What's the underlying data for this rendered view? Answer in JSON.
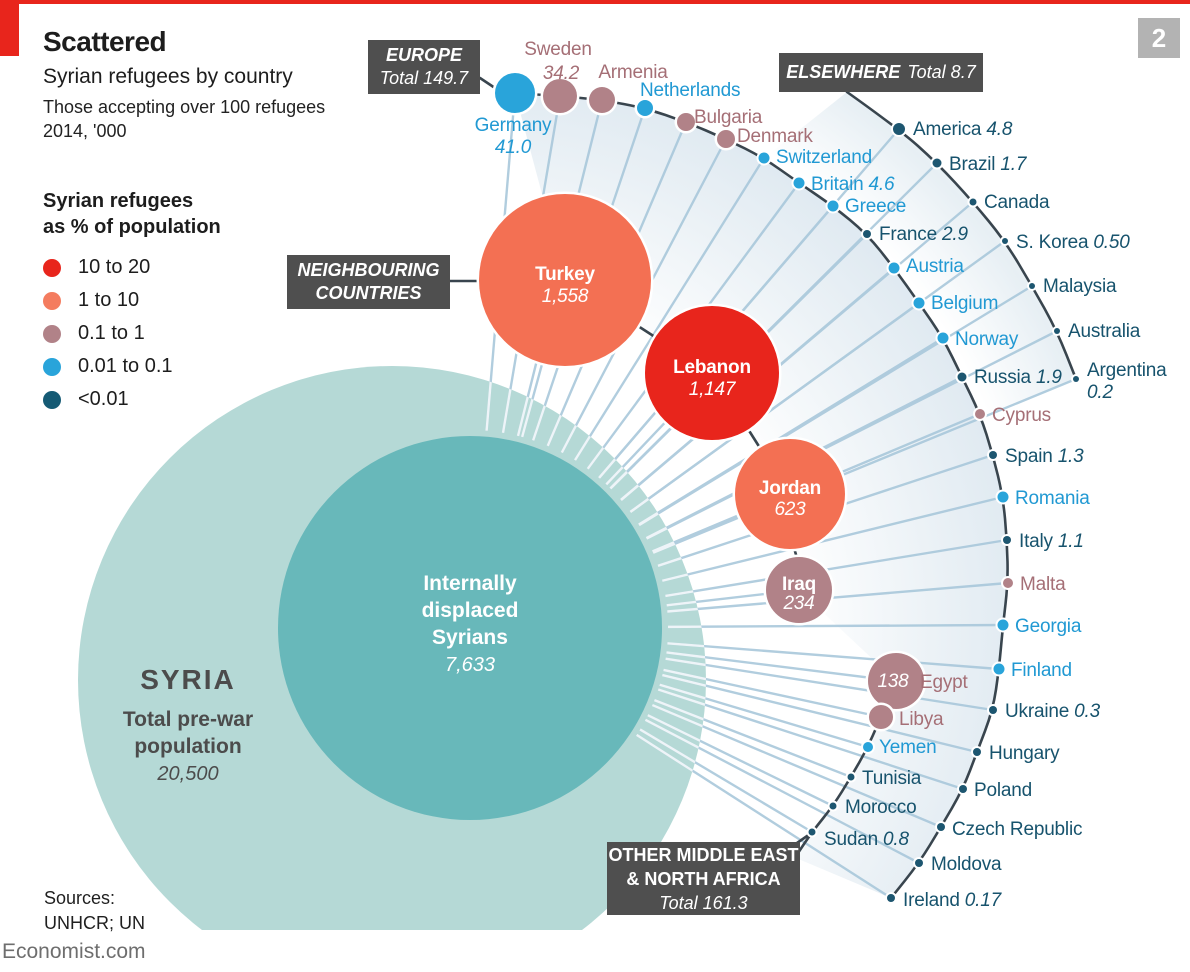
{
  "page": {
    "badge": "2",
    "economist_link": "Economist.com",
    "sources_label": "Sources:",
    "sources_value": "UNHCR; UN",
    "brand_red": "#e8251c"
  },
  "header": {
    "title": "Scattered",
    "subtitle": "Syrian refugees by country",
    "note1": "Those accepting over 100 refugees",
    "note2": "2014, '000"
  },
  "legend": {
    "title1": "Syrian refugees",
    "title2": "as % of population",
    "items": [
      {
        "label": "10 to 20",
        "tier": "red",
        "color": "#e8251c"
      },
      {
        "label": "1 to 10",
        "tier": "salmon",
        "color": "#f47c5f"
      },
      {
        "label": "0.1 to 1",
        "tier": "mauve",
        "color": "#b18288"
      },
      {
        "label": "0.01 to 0.1",
        "tier": "blue",
        "color": "#29a4da"
      },
      {
        "label": "<0.01",
        "tier": "dark",
        "color": "#155a74"
      }
    ]
  },
  "syria": {
    "name": "SYRIA",
    "line1": "Total pre-war",
    "line2": "population",
    "value": "20,500",
    "idp_line1": "Internally",
    "idp_line2": "displaced",
    "idp_line3": "Syrians",
    "idp_value": "7,633"
  },
  "groups": {
    "europe": {
      "name": "EUROPE",
      "total": "Total 149.7"
    },
    "elsewhere": {
      "name": "ELSEWHERE",
      "total": "Total 8.7"
    },
    "neighbouring": {
      "line1": "NEIGHBOURING",
      "line2": "COUNTRIES"
    },
    "mena": {
      "line1": "OTHER MIDDLE EAST",
      "line2": "& NORTH AFRICA",
      "total": "Total 161.3"
    }
  },
  "chart_data": {
    "type": "radial-bubble-fan",
    "title": "Scattered — Syrian refugees by country",
    "unit": "'000 refugees, 2014",
    "legend_title": "Syrian refugees as % of population",
    "colors": {
      "red": "#e8251c",
      "salmon": "#f37053",
      "mauve": "#b18288",
      "blue": "#29a4da",
      "dark": "#1d5670"
    },
    "text_colors": {
      "red": "#e8251c",
      "salmon": "#f37053",
      "mauve": "#a56f76",
      "blue": "#2199d3",
      "dark": "#17536d"
    },
    "syria_total_prewar_population": "20,500",
    "internally_displaced": "7,633",
    "group_totals": {
      "EUROPE": "149.7",
      "ELSEWHERE": "8.7",
      "OTHER MIDDLE EAST & NORTH AFRICA": "161.3"
    },
    "countries": [
      {
        "name": "Turkey",
        "value": "1,558",
        "pct": "1 to 10",
        "tier": "salmon",
        "group": "Neighbouring countries"
      },
      {
        "name": "Lebanon",
        "value": "1,147",
        "pct": "10 to 20",
        "tier": "red",
        "group": "Neighbouring countries"
      },
      {
        "name": "Jordan",
        "value": "623",
        "pct": "1 to 10",
        "tier": "salmon",
        "group": "Neighbouring countries"
      },
      {
        "name": "Iraq",
        "value": "234",
        "pct": "0.1 to 1",
        "tier": "mauve",
        "group": "Neighbouring countries"
      },
      {
        "name": "Egypt",
        "value": "138",
        "pct": "0.1 to 1",
        "tier": "mauve",
        "group": "Other Middle East & North Africa"
      },
      {
        "name": "Libya",
        "value": null,
        "pct": "0.1 to 1",
        "tier": "mauve",
        "group": "Other Middle East & North Africa"
      },
      {
        "name": "Yemen",
        "value": null,
        "pct": "0.01 to 0.1",
        "tier": "blue",
        "group": "Other Middle East & North Africa"
      },
      {
        "name": "Tunisia",
        "value": null,
        "pct": "<0.01",
        "tier": "dark",
        "group": "Other Middle East & North Africa"
      },
      {
        "name": "Morocco",
        "value": null,
        "pct": "<0.01",
        "tier": "dark",
        "group": "Other Middle East & North Africa"
      },
      {
        "name": "Sudan",
        "value": "0.8",
        "pct": "<0.01",
        "tier": "dark",
        "group": "Other Middle East & North Africa"
      },
      {
        "name": "Germany",
        "value": "41.0",
        "pct": "0.01 to 0.1",
        "tier": "blue",
        "group": "Europe"
      },
      {
        "name": "Sweden",
        "value": "34.2",
        "pct": "0.1 to 1",
        "tier": "mauve",
        "group": "Europe"
      },
      {
        "name": "Armenia",
        "value": null,
        "pct": "0.1 to 1",
        "tier": "mauve",
        "group": "Europe"
      },
      {
        "name": "Netherlands",
        "value": null,
        "pct": "0.01 to 0.1",
        "tier": "blue",
        "group": "Europe"
      },
      {
        "name": "Bulgaria",
        "value": null,
        "pct": "0.1 to 1",
        "tier": "mauve",
        "group": "Europe"
      },
      {
        "name": "Denmark",
        "value": null,
        "pct": "0.1 to 1",
        "tier": "mauve",
        "group": "Europe"
      },
      {
        "name": "Switzerland",
        "value": null,
        "pct": "0.01 to 0.1",
        "tier": "blue",
        "group": "Europe"
      },
      {
        "name": "Britain",
        "value": "4.6",
        "pct": "0.01 to 0.1",
        "tier": "blue",
        "group": "Europe"
      },
      {
        "name": "Greece",
        "value": null,
        "pct": "0.01 to 0.1",
        "tier": "blue",
        "group": "Europe"
      },
      {
        "name": "France",
        "value": "2.9",
        "pct": "<0.01",
        "tier": "dark",
        "group": "Europe"
      },
      {
        "name": "Austria",
        "value": null,
        "pct": "0.01 to 0.1",
        "tier": "blue",
        "group": "Europe"
      },
      {
        "name": "Belgium",
        "value": null,
        "pct": "0.01 to 0.1",
        "tier": "blue",
        "group": "Europe"
      },
      {
        "name": "Norway",
        "value": null,
        "pct": "0.01 to 0.1",
        "tier": "blue",
        "group": "Europe"
      },
      {
        "name": "Russia",
        "value": "1.9",
        "pct": "<0.01",
        "tier": "dark",
        "group": "Europe"
      },
      {
        "name": "Cyprus",
        "value": null,
        "pct": "0.1 to 1",
        "tier": "mauve",
        "group": "Europe"
      },
      {
        "name": "Spain",
        "value": "1.3",
        "pct": "<0.01",
        "tier": "dark",
        "group": "Europe"
      },
      {
        "name": "Romania",
        "value": null,
        "pct": "0.01 to 0.1",
        "tier": "blue",
        "group": "Europe"
      },
      {
        "name": "Italy",
        "value": "1.1",
        "pct": "<0.01",
        "tier": "dark",
        "group": "Europe"
      },
      {
        "name": "Malta",
        "value": null,
        "pct": "0.1 to 1",
        "tier": "mauve",
        "group": "Europe"
      },
      {
        "name": "Georgia",
        "value": null,
        "pct": "0.01 to 0.1",
        "tier": "blue",
        "group": "Europe"
      },
      {
        "name": "Finland",
        "value": null,
        "pct": "0.01 to 0.1",
        "tier": "blue",
        "group": "Europe"
      },
      {
        "name": "Ukraine",
        "value": "0.3",
        "pct": "<0.01",
        "tier": "dark",
        "group": "Europe"
      },
      {
        "name": "Hungary",
        "value": null,
        "pct": "<0.01",
        "tier": "dark",
        "group": "Europe"
      },
      {
        "name": "Poland",
        "value": null,
        "pct": "<0.01",
        "tier": "dark",
        "group": "Europe"
      },
      {
        "name": "Czech Republic",
        "value": null,
        "pct": "<0.01",
        "tier": "dark",
        "group": "Europe"
      },
      {
        "name": "Moldova",
        "value": null,
        "pct": "<0.01",
        "tier": "dark",
        "group": "Europe"
      },
      {
        "name": "Ireland",
        "value": "0.17",
        "pct": "<0.01",
        "tier": "dark",
        "group": "Europe"
      },
      {
        "name": "America",
        "value": "4.8",
        "pct": "<0.01",
        "tier": "dark",
        "group": "Elsewhere"
      },
      {
        "name": "Brazil",
        "value": "1.7",
        "pct": "<0.01",
        "tier": "dark",
        "group": "Elsewhere"
      },
      {
        "name": "Canada",
        "value": null,
        "pct": "<0.01",
        "tier": "dark",
        "group": "Elsewhere"
      },
      {
        "name": "S. Korea",
        "value": "0.50",
        "pct": "<0.01",
        "tier": "dark",
        "group": "Elsewhere"
      },
      {
        "name": "Malaysia",
        "value": null,
        "pct": "<0.01",
        "tier": "dark",
        "group": "Elsewhere"
      },
      {
        "name": "Australia",
        "value": null,
        "pct": "<0.01",
        "tier": "dark",
        "group": "Elsewhere"
      },
      {
        "name": "Argentina",
        "value": "0.2",
        "pct": "<0.01",
        "tier": "dark",
        "group": "Elsewhere"
      }
    ]
  }
}
